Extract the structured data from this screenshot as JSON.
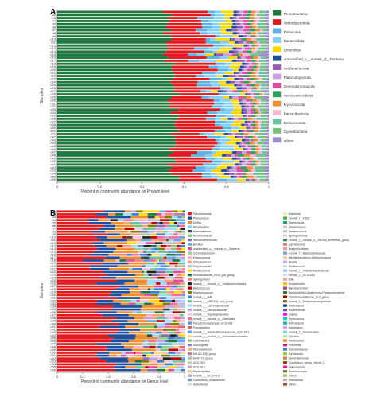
{
  "chart_data": [
    {
      "type": "bar",
      "orientation": "horizontal",
      "stacked": true,
      "panel_label": "A",
      "xlabel": "Percent of community abundance on Phylum level",
      "ylabel": "Samples",
      "xlim": [
        0,
        1
      ],
      "x_ticks": [
        "0",
        "0.2",
        "0.4",
        "0.6",
        "0.8",
        "1"
      ],
      "categories": [
        "d1",
        "d2",
        "d3",
        "d4",
        "d5",
        "d6",
        "d7",
        "d8",
        "d9",
        "d10",
        "d11",
        "d12",
        "d13",
        "d14",
        "d15",
        "d16",
        "d17",
        "d18",
        "d19",
        "d20",
        "d21",
        "d22",
        "d23",
        "d24",
        "d25",
        "d26",
        "d27",
        "d28",
        "d29",
        "d30",
        "d31",
        "d32",
        "d33",
        "d34",
        "d35",
        "d36",
        "d37",
        "d38",
        "d39",
        "d40",
        "d41",
        "d42",
        "d43",
        "d44",
        "d45",
        "d46",
        "d47",
        "d48",
        "d49",
        "d50",
        "d51",
        "d52",
        "d53",
        "d54",
        "d55",
        "d56"
      ],
      "legend_position": "right",
      "series": [
        {
          "name": "Proteobacteria",
          "color": "#1e7a3c"
        },
        {
          "name": "Actinobacteriota",
          "color": "#e31a1c"
        },
        {
          "name": "Firmicutes",
          "color": "#5ab4e6"
        },
        {
          "name": "Bacteroidota",
          "color": "#7fd0ff"
        },
        {
          "name": "Chloroflexi",
          "color": "#ffd700"
        },
        {
          "name": "unclassified_k__norank_d__Bacteria",
          "color": "#1f4e9e"
        },
        {
          "name": "Acidobacteriota",
          "color": "#9b59b6"
        },
        {
          "name": "Planctomycetota",
          "color": "#c8a0e0"
        },
        {
          "name": "Gemmatimonadota",
          "color": "#e64aa0"
        },
        {
          "name": "Verrucomicrobiota",
          "color": "#2ca25f"
        },
        {
          "name": "Myxococcota",
          "color": "#f28e2b"
        },
        {
          "name": "Patescibacteria",
          "color": "#f7b6d2"
        },
        {
          "name": "Deinococcota",
          "color": "#66c2a5"
        },
        {
          "name": "Cyanobacteria",
          "color": "#74c476"
        },
        {
          "name": "others",
          "color": "#9b8bd4"
        }
      ]
    },
    {
      "type": "bar",
      "orientation": "horizontal",
      "stacked": true,
      "panel_label": "B",
      "xlabel": "Percent of community abundance on Genus level",
      "ylabel": "Samples",
      "xlim": [
        0,
        1
      ],
      "x_ticks": [
        "0",
        "0.2",
        "0.4",
        "0.6",
        "0.8",
        "1"
      ],
      "categories": [
        "d1",
        "d2",
        "d3",
        "d4",
        "d5",
        "d6",
        "d7",
        "d8",
        "d9",
        "d10",
        "d11",
        "d12",
        "d13",
        "d14",
        "d15",
        "d16",
        "d17",
        "d18",
        "d19",
        "d20",
        "d21",
        "d22",
        "d23",
        "d24",
        "d25",
        "d26",
        "d27",
        "d28",
        "d29",
        "d30",
        "d31",
        "d32",
        "d33",
        "d34",
        "d35",
        "d36",
        "d37",
        "d38",
        "d39",
        "d40",
        "d41",
        "d42",
        "d43",
        "d44",
        "d45",
        "d46",
        "d47",
        "d48",
        "d49",
        "d50",
        "d51",
        "d52",
        "d53",
        "d54",
        "d55",
        "d56"
      ],
      "legend_position": "right",
      "series": [
        {
          "name": "Pseudomonas",
          "color": "#e31a1c"
        },
        {
          "name": "Planococcus",
          "color": "#1f4e9e"
        },
        {
          "name": "Delftia",
          "color": "#f28e2b"
        },
        {
          "name": "Brevibacillus",
          "color": "#7fd0ff"
        },
        {
          "name": "Arsenicibacter",
          "color": "#2f4f4f"
        },
        {
          "name": "Achromobacter",
          "color": "#74c476"
        },
        {
          "name": "Stenotrophomonas",
          "color": "#8b6bb1"
        },
        {
          "name": "Bacillus",
          "color": "#5ab4e6"
        },
        {
          "name": "unclassified_o__norank_d__Bacteria",
          "color": "#e64aa0"
        },
        {
          "name": "Corynebacterium",
          "color": "#8fd18f"
        },
        {
          "name": "Enterococcus",
          "color": "#ffb6c1"
        },
        {
          "name": "Ochrobactrum",
          "color": "#ffa07a"
        },
        {
          "name": "Enhydrobacter",
          "color": "#b0c4de"
        },
        {
          "name": "Rhodococcus",
          "color": "#ffd700"
        },
        {
          "name": "Rhodanobacter_RCB_gut_group",
          "color": "#1e7a3c"
        },
        {
          "name": "Sphingobium",
          "color": "#ff7f7f"
        },
        {
          "name": "norank_f__norank_o__Vulcanimicrobiales",
          "color": "#222222"
        },
        {
          "name": "Blastococcus",
          "color": "#c00000"
        },
        {
          "name": "Staphylococcus",
          "color": "#808000"
        },
        {
          "name": "norank_f__A4b",
          "color": "#3a7fd5"
        },
        {
          "name": "norank_f__MB-M20_soil_group",
          "color": "#66c2a5"
        },
        {
          "name": "norank_f__Lachnospiraceae",
          "color": "#9cdcfe"
        },
        {
          "name": "norank_f__Microscillaceae",
          "color": "#c8a0e0"
        },
        {
          "name": "norank_f__Tepidisphaerales",
          "color": "#f7c6e0"
        },
        {
          "name": "norank_f__norank_o__Gaiellales",
          "color": "#ff6b9b"
        },
        {
          "name": "Pseudomonadaceae_UCG-001",
          "color": "#5b9bd5"
        },
        {
          "name": "Paenibacillus",
          "color": "#e06666"
        },
        {
          "name": "norank_f__Gemmatimonadaceae_UCG-001",
          "color": "#66a3ff"
        },
        {
          "name": "norank_f__norank_o__Gemmatimonadales",
          "color": "#ffd966"
        },
        {
          "name": "Lactobacillus",
          "color": "#93c47d"
        },
        {
          "name": "Ukkungtella",
          "color": "#8e7cc3"
        },
        {
          "name": "Microbacterium",
          "color": "#f6b26b"
        },
        {
          "name": "MB-A2-108_group",
          "color": "#c27ba0"
        },
        {
          "name": "MKK471_group",
          "color": "#a2c4c9"
        },
        {
          "name": "UCG-005",
          "color": "#b6d7a8"
        },
        {
          "name": "UCG-010",
          "color": "#d5a6bd"
        },
        {
          "name": "Peptoniphilus",
          "color": "#f9cb9c"
        },
        {
          "name": "norank_f__UCG-010",
          "color": "#b4a7d6"
        },
        {
          "name": "Candidatus_Udaeobacter",
          "color": "#76a5af"
        },
        {
          "name": "Sulfurifustis",
          "color": "#cfe2f3"
        },
        {
          "name": "Ralstonia",
          "color": "#ffe599"
        },
        {
          "name": "norank_f__FS52",
          "color": "#4caf50"
        },
        {
          "name": "Marmoricola",
          "color": "#00a86b"
        },
        {
          "name": "Streptomyces",
          "color": "#cccccc"
        },
        {
          "name": "Streptococcus",
          "color": "#a9cce3"
        },
        {
          "name": "Sphingomonas",
          "color": "#f4cccc"
        },
        {
          "name": "norank_f__norank_o__SBX04_terrestrial_group",
          "color": "#2e8b57"
        },
        {
          "name": "Lactobacillus",
          "color": "#dd7e6b"
        },
        {
          "name": "Bradyrhizobium",
          "color": "#ea9999"
        },
        {
          "name": "norank_f__Blastocatellaceae",
          "color": "#6fa8dc"
        },
        {
          "name": "Methylobacterium-Methylorubrum",
          "color": "#ffcc99"
        },
        {
          "name": "Blautia",
          "color": "#b3b3ff"
        },
        {
          "name": "Muribaculum",
          "color": "#d9d2e9"
        },
        {
          "name": "norank_f__Vicinamibacteraceae",
          "color": "#99ccff"
        },
        {
          "name": "norank_f__UCG-010",
          "color": "#c9daf8"
        },
        {
          "name": "Ellin",
          "color": "#ff9999"
        },
        {
          "name": "Nocardioides",
          "color": "#ffc000"
        },
        {
          "name": "Mycobacterium",
          "color": "#a64d79"
        },
        {
          "name": "Burkholderia-Caballeronia-Paraburkholderia",
          "color": "#38761d"
        },
        {
          "name": "Christensenellaceae_R-7_group",
          "color": "#990000"
        },
        {
          "name": "norank_f__Streptosporangiaceae",
          "color": "#b45f06"
        },
        {
          "name": "Rubrobacter",
          "color": "#0b5394"
        },
        {
          "name": "Roseomonas",
          "color": "#674ea7"
        },
        {
          "name": "Gaiella",
          "color": "#ff00ff"
        },
        {
          "name": "Humicoccus",
          "color": "#00ced1"
        },
        {
          "name": "Arthrobacter",
          "color": "#20b2aa"
        },
        {
          "name": "Haliangium",
          "color": "#dda0dd"
        },
        {
          "name": "norank_f__Vermiculales",
          "color": "#87cefa"
        },
        {
          "name": "Opitutus",
          "color": "#98fb98"
        },
        {
          "name": "Romboutsia",
          "color": "#ff8c00"
        },
        {
          "name": "Prevotella",
          "color": "#c71585"
        },
        {
          "name": "Solirubrobacter",
          "color": "#4682b4"
        },
        {
          "name": "Turicibacter",
          "color": "#9acd32"
        },
        {
          "name": "Gemmatimonas",
          "color": "#cd853f"
        },
        {
          "name": "Clostridium_sensu_stricto_1",
          "color": "#8b4513"
        },
        {
          "name": "Akkermansia",
          "color": "#ff1493"
        },
        {
          "name": "Ruminococcus",
          "color": "#6b8e23"
        },
        {
          "name": "others",
          "color": "#bdb76b"
        },
        {
          "name": "Nitrolancea",
          "color": "#b0b0d0"
        },
        {
          "name": "Vibrio",
          "color": "#a0522d"
        }
      ]
    }
  ]
}
